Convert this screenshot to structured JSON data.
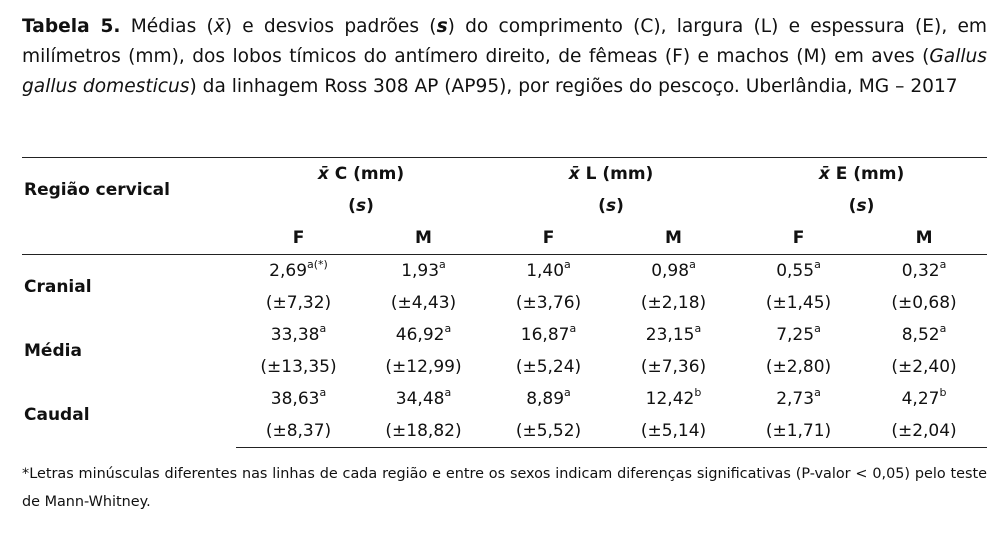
{
  "caption": {
    "label": "Tabela 5.",
    "part1": " Médias (",
    "sym_mean": "x̄",
    "part2": ") e desvios padrões (",
    "sym_s": "s",
    "part3": ") do comprimento (C), largura (L) e espessura (E), em milímetros (mm), dos lobos tímicos do antímero direito, de fêmeas (F) e machos (M) em aves (",
    "species": "Gallus gallus domesticus",
    "part4": ") da linhagem Ross 308 AP (AP95), por regiões do pescoço. Uberlândia, MG – 2017"
  },
  "table": {
    "row_header": "Região cervical",
    "groups": [
      {
        "sym": "x̄",
        "label": " C (mm)",
        "sub": "s"
      },
      {
        "sym": "x̄",
        "label": " L (mm)",
        "sub": "s"
      },
      {
        "sym": "x̄",
        "label": " E (mm)",
        "sub": "s"
      }
    ],
    "sex_labels": [
      "F",
      "M",
      "F",
      "M",
      "F",
      "M"
    ],
    "rows": [
      {
        "region": "Cranial",
        "means": [
          {
            "v": "2,69",
            "sup": "a(*)"
          },
          {
            "v": "1,93",
            "sup": "a"
          },
          {
            "v": "1,40",
            "sup": "a"
          },
          {
            "v": "0,98",
            "sup": "a"
          },
          {
            "v": "0,55",
            "sup": "a"
          },
          {
            "v": "0,32",
            "sup": "a"
          }
        ],
        "sds": [
          "(±7,32)",
          "(±4,43)",
          "(±3,76)",
          "(±2,18)",
          "(±1,45)",
          "(±0,68)"
        ]
      },
      {
        "region": "Média",
        "means": [
          {
            "v": "33,38",
            "sup": "a"
          },
          {
            "v": "46,92",
            "sup": "a"
          },
          {
            "v": "16,87",
            "sup": "a"
          },
          {
            "v": "23,15",
            "sup": "a"
          },
          {
            "v": "7,25",
            "sup": "a"
          },
          {
            "v": "8,52",
            "sup": "a"
          }
        ],
        "sds": [
          "(±13,35)",
          "(±12,99)",
          "(±5,24)",
          "(±7,36)",
          "(±2,80)",
          "(±2,40)"
        ]
      },
      {
        "region": "Caudal",
        "means": [
          {
            "v": "38,63",
            "sup": "a"
          },
          {
            "v": "34,48",
            "sup": "a"
          },
          {
            "v": "8,89",
            "sup": "a"
          },
          {
            "v": "12,42",
            "sup": "b"
          },
          {
            "v": "2,73",
            "sup": "a"
          },
          {
            "v": "4,27",
            "sup": "b"
          }
        ],
        "sds": [
          "(±8,37)",
          "(±18,82)",
          "(±5,52)",
          "(±5,14)",
          "(±1,71)",
          "(±2,04)"
        ]
      }
    ]
  },
  "footnote": "*Letras minúsculas diferentes nas linhas de cada região e entre os sexos indicam diferenças significativas (P-valor < 0,05) pelo teste de Mann-Whitney."
}
